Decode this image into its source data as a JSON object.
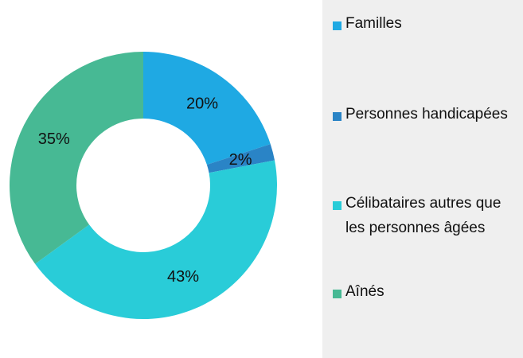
{
  "chart_data": {
    "type": "donut",
    "categories": [
      "Familles",
      "Personnes handicapées",
      "Célibataires autres que les personnes âgées",
      "Aînés"
    ],
    "values": [
      20,
      2,
      43,
      35
    ],
    "value_labels": [
      "20%",
      "2%",
      "43%",
      "35%"
    ],
    "colors": [
      "#1fa9e3",
      "#2a84c6",
      "#29ccd8",
      "#47b994"
    ],
    "legend": "right"
  }
}
